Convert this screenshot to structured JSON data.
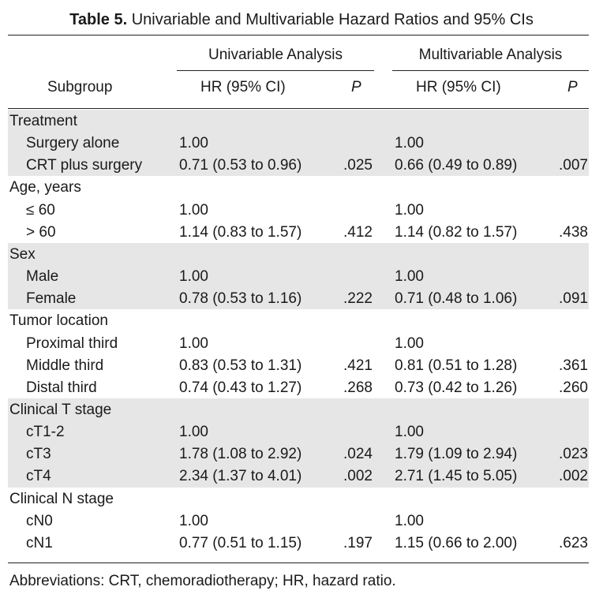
{
  "caption": {
    "label": "Table 5.",
    "text": "Univariable and Multivariable Hazard Ratios and 95% CIs"
  },
  "groups": {
    "univariable": "Univariable Analysis",
    "multivariable": "Multivariable Analysis"
  },
  "columns": {
    "subgroup": "Subgroup",
    "uni_hr": "HR (95% CI)",
    "uni_p": "P",
    "multi_hr": "HR (95% CI)",
    "multi_p": "P"
  },
  "rows": [
    {
      "label": "Treatment",
      "indent": false,
      "uni_hr": "",
      "uni_p": "",
      "multi_hr": "",
      "multi_p": "",
      "shaded": true
    },
    {
      "label": "Surgery alone",
      "indent": true,
      "uni_hr": "1.00",
      "uni_p": "",
      "multi_hr": "1.00",
      "multi_p": "",
      "shaded": true
    },
    {
      "label": "CRT plus surgery",
      "indent": true,
      "uni_hr": "0.71 (0.53 to 0.96)",
      "uni_p": ".025",
      "multi_hr": "0.66 (0.49 to 0.89)",
      "multi_p": ".007",
      "shaded": true
    },
    {
      "label": "Age, years",
      "indent": false,
      "uni_hr": "",
      "uni_p": "",
      "multi_hr": "",
      "multi_p": "",
      "shaded": false
    },
    {
      "label": "≤ 60",
      "indent": true,
      "uni_hr": "1.00",
      "uni_p": "",
      "multi_hr": "1.00",
      "multi_p": "",
      "shaded": false
    },
    {
      "label": "> 60",
      "indent": true,
      "uni_hr": "1.14 (0.83 to 1.57)",
      "uni_p": ".412",
      "multi_hr": "1.14 (0.82 to 1.57)",
      "multi_p": ".438",
      "shaded": false
    },
    {
      "label": "Sex",
      "indent": false,
      "uni_hr": "",
      "uni_p": "",
      "multi_hr": "",
      "multi_p": "",
      "shaded": true
    },
    {
      "label": "Male",
      "indent": true,
      "uni_hr": "1.00",
      "uni_p": "",
      "multi_hr": "1.00",
      "multi_p": "",
      "shaded": true
    },
    {
      "label": "Female",
      "indent": true,
      "uni_hr": "0.78 (0.53 to 1.16)",
      "uni_p": ".222",
      "multi_hr": "0.71 (0.48 to 1.06)",
      "multi_p": ".091",
      "shaded": true
    },
    {
      "label": "Tumor location",
      "indent": false,
      "uni_hr": "",
      "uni_p": "",
      "multi_hr": "",
      "multi_p": "",
      "shaded": false
    },
    {
      "label": "Proximal third",
      "indent": true,
      "uni_hr": "1.00",
      "uni_p": "",
      "multi_hr": "1.00",
      "multi_p": "",
      "shaded": false
    },
    {
      "label": "Middle third",
      "indent": true,
      "uni_hr": "0.83 (0.53 to 1.31)",
      "uni_p": ".421",
      "multi_hr": "0.81 (0.51 to 1.28)",
      "multi_p": ".361",
      "shaded": false
    },
    {
      "label": "Distal third",
      "indent": true,
      "uni_hr": "0.74 (0.43 to 1.27)",
      "uni_p": ".268",
      "multi_hr": "0.73 (0.42 to 1.26)",
      "multi_p": ".260",
      "shaded": false
    },
    {
      "label": "Clinical T stage",
      "indent": false,
      "uni_hr": "",
      "uni_p": "",
      "multi_hr": "",
      "multi_p": "",
      "shaded": true
    },
    {
      "label": "cT1-2",
      "indent": true,
      "uni_hr": "1.00",
      "uni_p": "",
      "multi_hr": "1.00",
      "multi_p": "",
      "shaded": true
    },
    {
      "label": "cT3",
      "indent": true,
      "uni_hr": "1.78 (1.08 to 2.92)",
      "uni_p": ".024",
      "multi_hr": "1.79 (1.09 to 2.94)",
      "multi_p": ".023",
      "shaded": true
    },
    {
      "label": "cT4",
      "indent": true,
      "uni_hr": "2.34 (1.37 to 4.01)",
      "uni_p": ".002",
      "multi_hr": "2.71 (1.45 to 5.05)",
      "multi_p": ".002",
      "shaded": true
    },
    {
      "label": "Clinical N stage",
      "indent": false,
      "uni_hr": "",
      "uni_p": "",
      "multi_hr": "",
      "multi_p": "",
      "shaded": false
    },
    {
      "label": "cN0",
      "indent": true,
      "uni_hr": "1.00",
      "uni_p": "",
      "multi_hr": "1.00",
      "multi_p": "",
      "shaded": false
    },
    {
      "label": "cN1",
      "indent": true,
      "uni_hr": "0.77 (0.51 to 1.15)",
      "uni_p": ".197",
      "multi_hr": "1.15 (0.66 to 2.00)",
      "multi_p": ".623",
      "shaded": false
    }
  ],
  "footnote": "Abbreviations: CRT, chemoradiotherapy; HR, hazard ratio.",
  "colors": {
    "band": "#e6e6e6",
    "rule": "#222222",
    "text": "#1a1a1a"
  }
}
